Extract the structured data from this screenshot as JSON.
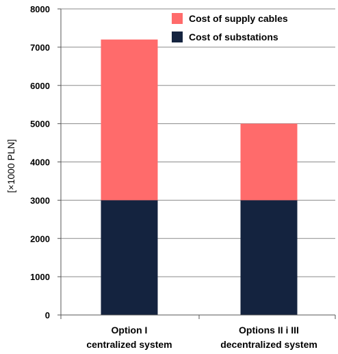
{
  "chart_data": {
    "type": "bar",
    "stacked": true,
    "categories": [
      [
        "Option I",
        "centralized system"
      ],
      [
        "Options  II i III",
        "decentralized system"
      ]
    ],
    "series": [
      {
        "name": "Cost of substations",
        "values": [
          3000,
          3000
        ],
        "color": "#14233f"
      },
      {
        "name": "Cost of supply cables",
        "values": [
          4200,
          2000
        ],
        "color": "#ff6b6b"
      }
    ],
    "legend_order": [
      1,
      0
    ],
    "legend_position": "top-right",
    "ylabel": "[×1000 PLN]",
    "ylim": [
      0,
      8000
    ],
    "yticks": [
      0,
      1000,
      2000,
      3000,
      4000,
      5000,
      6000,
      7000,
      8000
    ],
    "grid": true
  }
}
